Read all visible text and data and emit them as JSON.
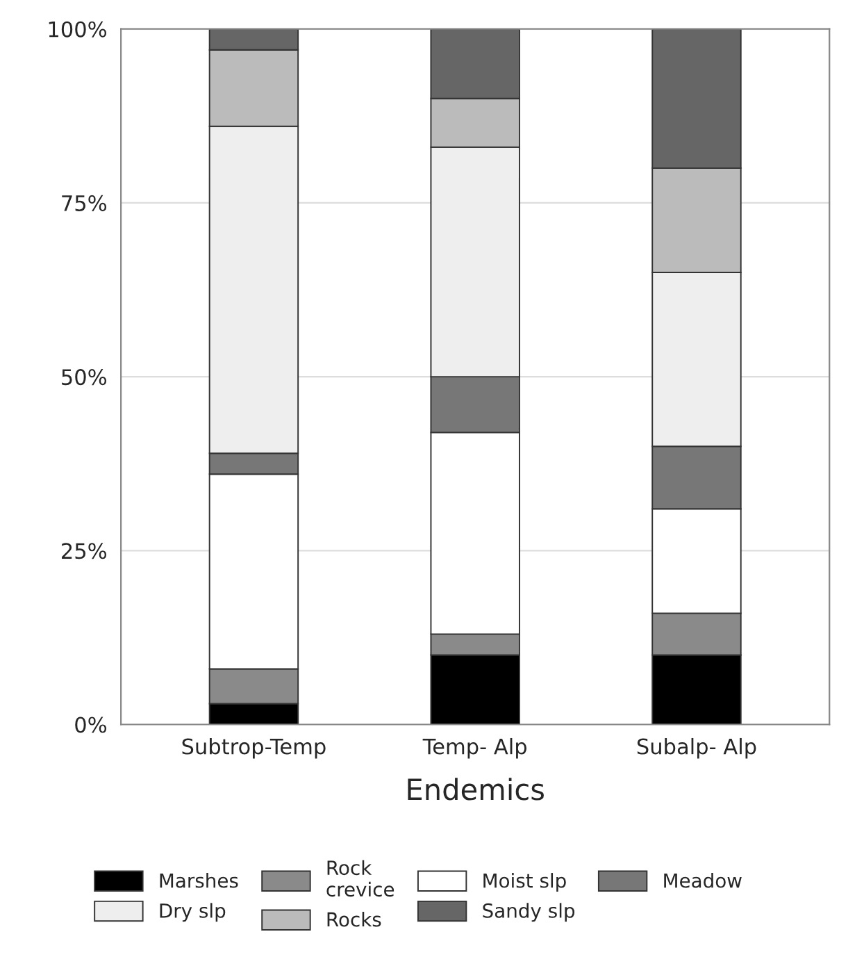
{
  "chart_data": {
    "type": "bar",
    "stacked": true,
    "xlabel": "Endemics",
    "categories": [
      "Subtrop-Temp",
      "Temp- Alp",
      "Subalp- Alp"
    ],
    "series": [
      {
        "name": "Marshes",
        "color": "#000000",
        "values": [
          3,
          10,
          10
        ]
      },
      {
        "name": "Rock\ncrevice",
        "color": "#8a8a8a",
        "values": [
          5,
          3,
          6
        ]
      },
      {
        "name": "Moist slp",
        "color": "#ffffff",
        "values": [
          28,
          29,
          15
        ]
      },
      {
        "name": "Meadow",
        "color": "#777777",
        "values": [
          3,
          8,
          9
        ]
      },
      {
        "name": "Dry slp",
        "color": "#eeeeee",
        "values": [
          47,
          33,
          25
        ]
      },
      {
        "name": "Rocks",
        "color": "#bbbbbb",
        "values": [
          11,
          7,
          15
        ]
      },
      {
        "name": "Sandy slp",
        "color": "#666666",
        "values": [
          3,
          10,
          20
        ]
      }
    ],
    "ylim": [
      0,
      100
    ],
    "yticks": [
      {
        "value": 0,
        "label": "0%"
      },
      {
        "value": 25,
        "label": "25%"
      },
      {
        "value": 50,
        "label": "50%"
      },
      {
        "value": 75,
        "label": "75%"
      },
      {
        "value": 100,
        "label": "100%"
      }
    ],
    "grid": "y",
    "legend": "bottom"
  }
}
